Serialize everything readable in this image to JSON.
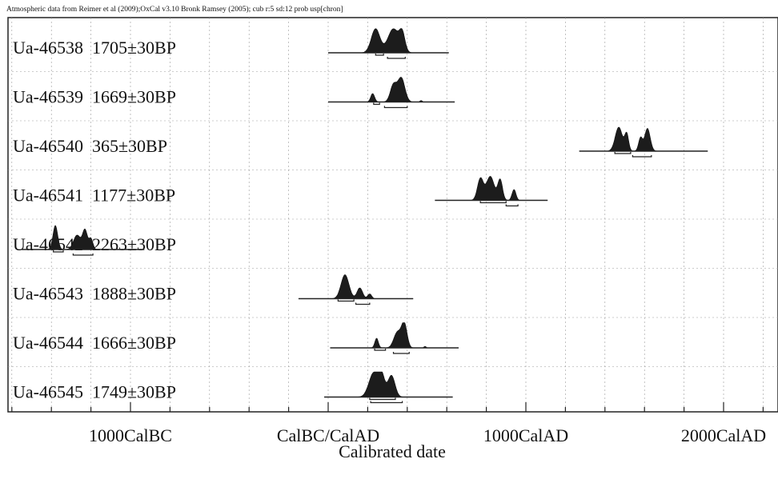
{
  "chart_data": {
    "type": "range-distribution",
    "header": "Atmospheric data from Reimer et al (2009);OxCal v3.10 Bronk Ramsey (2005); cub r:5 sd:12 prob usp[chron]",
    "xlabel": "Calibrated date",
    "xlim": [
      -2000,
      2300
    ],
    "x_ticks": [
      {
        "value": -1000,
        "label": "1000CalBC"
      },
      {
        "value": 0,
        "label": "CalBC/CalAD"
      },
      {
        "value": 1000,
        "label": "1000CalAD"
      },
      {
        "value": 2000,
        "label": "2000CalAD"
      }
    ],
    "grid": true,
    "samples": [
      {
        "label": "Ua-46538  1705±30BP",
        "baseline": [
          0,
          610
        ],
        "peaks": [
          {
            "center": 240,
            "width": 22,
            "height": 1.0
          },
          {
            "center": 330,
            "width": 28,
            "height": 1.0
          },
          {
            "center": 375,
            "width": 14,
            "height": 0.7
          }
        ],
        "ranges": [
          [
            240,
            280
          ],
          [
            300,
            390
          ]
        ]
      },
      {
        "label": "Ua-46539  1669±30BP",
        "baseline": [
          0,
          640
        ],
        "peaks": [
          {
            "center": 225,
            "width": 10,
            "height": 0.35
          },
          {
            "center": 330,
            "width": 16,
            "height": 0.7
          },
          {
            "center": 370,
            "width": 18,
            "height": 1.0
          },
          {
            "center": 470,
            "width": 6,
            "height": 0.06
          }
        ],
        "ranges": [
          [
            230,
            260
          ],
          [
            285,
            400
          ]
        ]
      },
      {
        "label": "Ua-46540  365±30BP",
        "baseline": [
          1270,
          1920
        ],
        "peaks": [
          {
            "center": 1470,
            "width": 18,
            "height": 1.0
          },
          {
            "center": 1510,
            "width": 10,
            "height": 0.7
          },
          {
            "center": 1580,
            "width": 10,
            "height": 0.55
          },
          {
            "center": 1615,
            "width": 14,
            "height": 0.95
          }
        ],
        "ranges": [
          [
            1450,
            1530
          ],
          [
            1540,
            1635
          ]
        ]
      },
      {
        "label": "Ua-46541  1177±30BP",
        "baseline": [
          540,
          1110
        ],
        "peaks": [
          {
            "center": 770,
            "width": 15,
            "height": 0.9
          },
          {
            "center": 820,
            "width": 20,
            "height": 1.0
          },
          {
            "center": 870,
            "width": 12,
            "height": 0.85
          },
          {
            "center": 940,
            "width": 10,
            "height": 0.45
          }
        ],
        "ranges": [
          [
            770,
            900
          ],
          [
            900,
            960
          ]
        ]
      },
      {
        "label": "Ua-46542  2263±30BP",
        "baseline": [
          -1550,
          -930
        ],
        "peaks": [
          {
            "center": -1380,
            "width": 12,
            "height": 1.0
          },
          {
            "center": -1270,
            "width": 18,
            "height": 0.6
          },
          {
            "center": -1230,
            "width": 12,
            "height": 0.8
          },
          {
            "center": -1200,
            "width": 10,
            "height": 0.45
          }
        ],
        "ranges": [
          [
            -1390,
            -1340
          ],
          [
            -1290,
            -1190
          ]
        ]
      },
      {
        "label": "Ua-46543  1888±30BP",
        "baseline": [
          -150,
          430
        ],
        "peaks": [
          {
            "center": 85,
            "width": 20,
            "height": 1.0
          },
          {
            "center": 160,
            "width": 14,
            "height": 0.45
          },
          {
            "center": 210,
            "width": 10,
            "height": 0.2
          }
        ],
        "ranges": [
          [
            50,
            130
          ],
          [
            140,
            210
          ]
        ]
      },
      {
        "label": "Ua-46544  1666±30BP",
        "baseline": [
          10,
          660
        ],
        "peaks": [
          {
            "center": 245,
            "width": 9,
            "height": 0.4
          },
          {
            "center": 350,
            "width": 18,
            "height": 0.65
          },
          {
            "center": 385,
            "width": 14,
            "height": 1.0
          },
          {
            "center": 490,
            "width": 6,
            "height": 0.06
          }
        ],
        "ranges": [
          [
            235,
            290
          ],
          [
            330,
            410
          ]
        ]
      },
      {
        "label": "Ua-46545  1749±30BP",
        "baseline": [
          -20,
          630
        ],
        "peaks": [
          {
            "center": 230,
            "width": 24,
            "height": 1.0
          },
          {
            "center": 270,
            "width": 16,
            "height": 0.85
          },
          {
            "center": 320,
            "width": 18,
            "height": 0.9
          }
        ],
        "ranges": [
          [
            210,
            340
          ],
          [
            215,
            375
          ]
        ]
      }
    ]
  }
}
